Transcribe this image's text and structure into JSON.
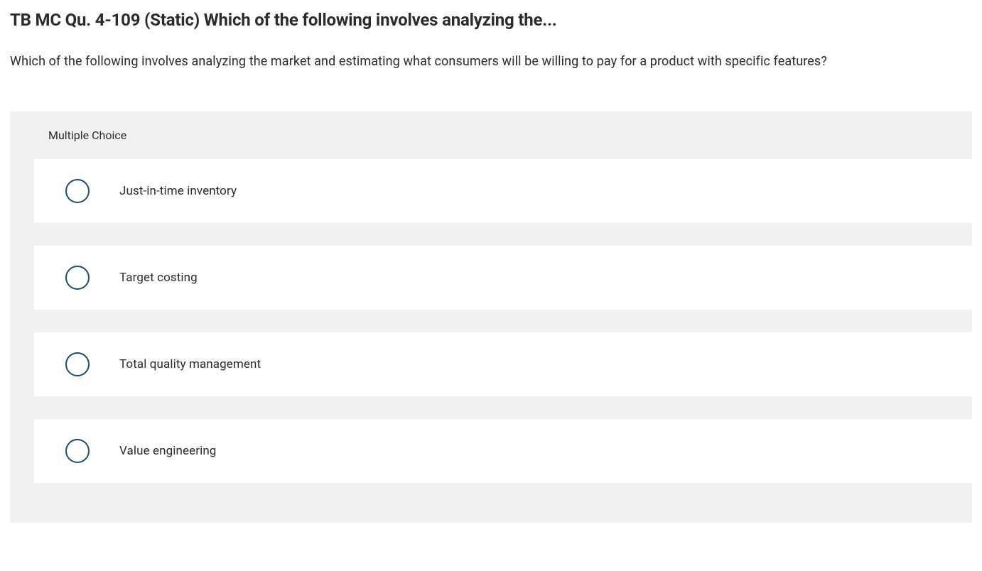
{
  "question": {
    "title": "TB MC Qu. 4-109 (Static) Which of the following involves analyzing the...",
    "body": "Which of the following involves analyzing the market and estimating what consumers will be willing to pay for a product with specific features?",
    "section_label": "Multiple Choice",
    "options": [
      {
        "label": "Just-in-time inventory"
      },
      {
        "label": "Target costing"
      },
      {
        "label": "Total quality management"
      },
      {
        "label": "Value engineering"
      }
    ]
  },
  "colors": {
    "page_background": "#ffffff",
    "container_background": "#f1f1f1",
    "option_background": "#ffffff",
    "radio_border": "#1e4b75",
    "text": "#2b2b2b"
  }
}
